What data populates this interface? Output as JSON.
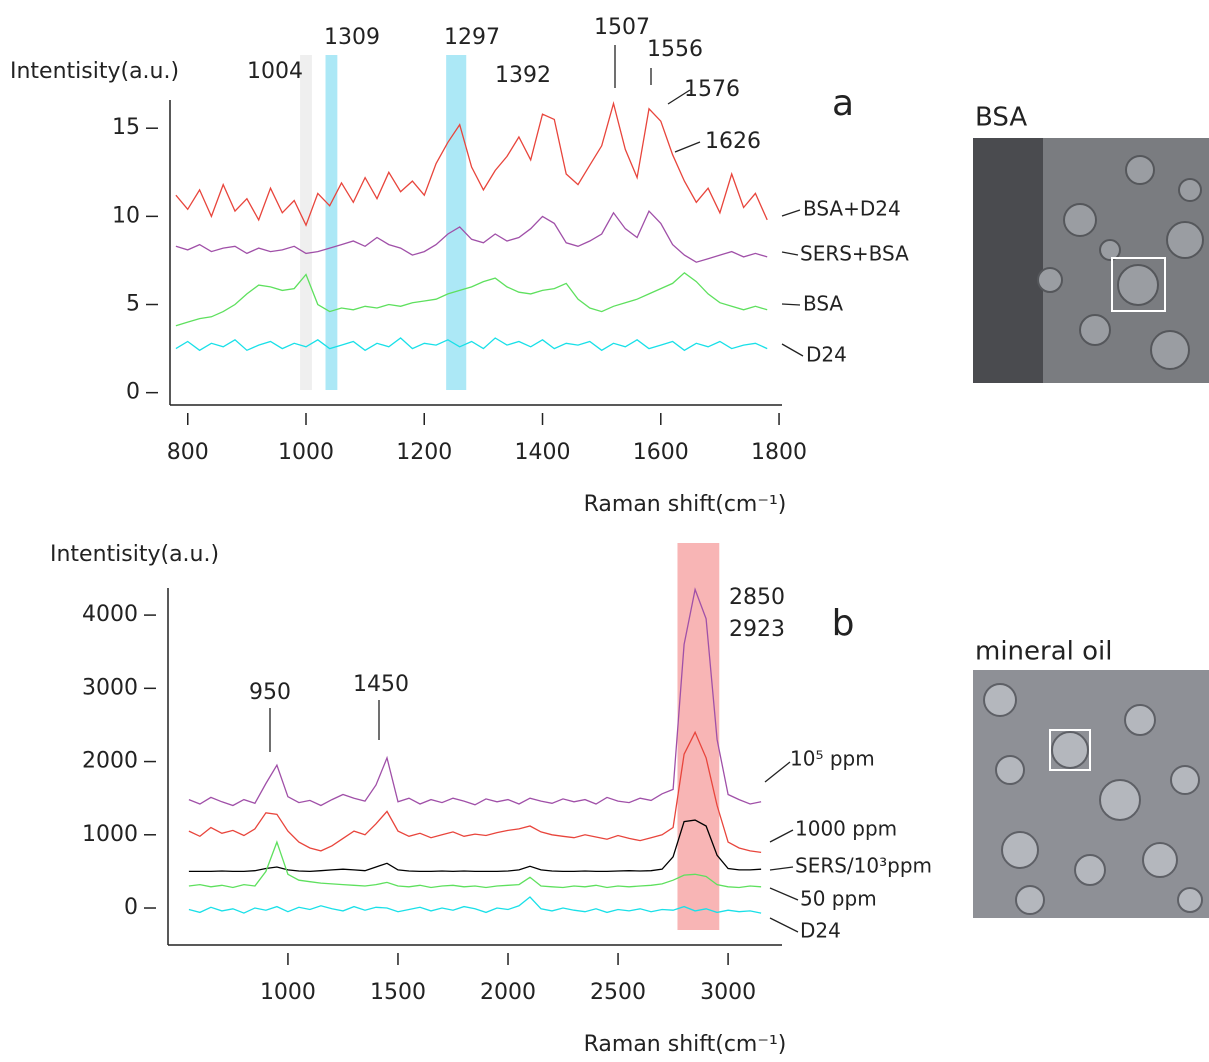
{
  "chart_data": [
    {
      "type": "line",
      "panel": "a",
      "ylabel": "Intentisity(a.u.)",
      "xlabel": "Raman shift(cm⁻¹)",
      "xlim": [
        770,
        1805
      ],
      "ylim": [
        -0.7,
        16.6
      ],
      "xticks": [
        800,
        1000,
        1200,
        1400,
        1600,
        1800
      ],
      "yticks": [
        0,
        5,
        10,
        15
      ],
      "bands": [
        {
          "range": [
            990,
            1010
          ],
          "color": "#ececec"
        },
        {
          "range": [
            1033,
            1053
          ],
          "color": "#9ee4f4"
        },
        {
          "range": [
            1237,
            1271
          ],
          "color": "#9ee4f4"
        }
      ],
      "annotations": [
        {
          "text": "1004"
        },
        {
          "text": "1309"
        },
        {
          "text": "1297"
        },
        {
          "text": "1392"
        },
        {
          "text": "1507"
        },
        {
          "text": "1556"
        },
        {
          "text": "1576"
        },
        {
          "text": "1626"
        }
      ],
      "x": [
        780,
        800,
        820,
        840,
        860,
        880,
        900,
        920,
        940,
        960,
        980,
        1000,
        1020,
        1040,
        1060,
        1080,
        1100,
        1120,
        1140,
        1160,
        1180,
        1200,
        1220,
        1240,
        1260,
        1280,
        1300,
        1320,
        1340,
        1360,
        1380,
        1400,
        1420,
        1440,
        1460,
        1480,
        1500,
        1520,
        1540,
        1560,
        1580,
        1600,
        1620,
        1640,
        1660,
        1680,
        1700,
        1720,
        1740,
        1760,
        1780
      ],
      "series": [
        {
          "name": "BSA+D24",
          "color": "#e8453c",
          "values": [
            11.2,
            10.4,
            11.5,
            10.0,
            11.8,
            10.3,
            11.0,
            9.8,
            11.6,
            10.2,
            10.9,
            9.5,
            11.3,
            10.6,
            11.9,
            10.8,
            12.2,
            11.0,
            12.5,
            11.4,
            12.0,
            11.2,
            13.0,
            14.2,
            15.2,
            12.8,
            11.5,
            12.6,
            13.4,
            14.5,
            13.2,
            15.8,
            15.5,
            12.4,
            11.8,
            12.9,
            14.0,
            16.4,
            13.8,
            12.2,
            16.1,
            15.4,
            13.5,
            12.0,
            10.8,
            11.6,
            10.2,
            12.4,
            10.5,
            11.3,
            9.8
          ]
        },
        {
          "name": "SERS+BSA",
          "color": "#a050a8",
          "values": [
            8.3,
            8.1,
            8.4,
            8.0,
            8.2,
            8.3,
            7.9,
            8.2,
            8.0,
            8.1,
            8.3,
            7.9,
            8.0,
            8.2,
            8.4,
            8.6,
            8.3,
            8.8,
            8.4,
            8.2,
            7.8,
            8.0,
            8.4,
            9.0,
            9.4,
            8.7,
            8.5,
            9.0,
            8.6,
            8.8,
            9.3,
            10.0,
            9.6,
            8.5,
            8.3,
            8.6,
            9.0,
            10.2,
            9.3,
            8.8,
            10.3,
            9.6,
            8.4,
            7.8,
            7.4,
            7.6,
            7.8,
            8.0,
            7.7,
            7.9,
            7.7
          ]
        },
        {
          "name": "BSA",
          "color": "#5ee05e",
          "values": [
            3.8,
            4.0,
            4.2,
            4.3,
            4.6,
            5.0,
            5.6,
            6.1,
            6.0,
            5.8,
            5.9,
            6.7,
            5.0,
            4.6,
            4.8,
            4.7,
            4.9,
            4.8,
            5.0,
            4.9,
            5.1,
            5.2,
            5.3,
            5.6,
            5.8,
            6.0,
            6.3,
            6.5,
            6.0,
            5.7,
            5.6,
            5.8,
            5.9,
            6.2,
            5.3,
            4.8,
            4.6,
            4.9,
            5.1,
            5.3,
            5.6,
            5.9,
            6.2,
            6.8,
            6.3,
            5.6,
            5.1,
            4.9,
            4.7,
            4.9,
            4.7
          ]
        },
        {
          "name": "D24",
          "color": "#19e0e8",
          "values": [
            2.5,
            2.9,
            2.4,
            2.8,
            2.6,
            3.0,
            2.4,
            2.7,
            2.9,
            2.5,
            2.8,
            2.6,
            3.0,
            2.5,
            2.7,
            2.9,
            2.4,
            2.8,
            2.6,
            3.1,
            2.5,
            2.8,
            2.7,
            3.0,
            2.6,
            2.9,
            2.5,
            3.1,
            2.7,
            2.9,
            2.6,
            3.0,
            2.5,
            2.8,
            2.7,
            2.9,
            2.4,
            2.8,
            2.6,
            3.0,
            2.5,
            2.7,
            2.9,
            2.4,
            2.8,
            2.6,
            2.9,
            2.5,
            2.7,
            2.8,
            2.5
          ]
        }
      ]
    },
    {
      "type": "line",
      "panel": "b",
      "ylabel": "Intentisity(a.u.)",
      "xlabel": "Raman shift(cm⁻¹)",
      "xlim": [
        455,
        3245
      ],
      "ylim": [
        -505,
        4370
      ],
      "xticks": [
        1000,
        1500,
        2000,
        2500,
        3000
      ],
      "yticks": [
        0,
        1000,
        2000,
        3000,
        4000
      ],
      "bands": [
        {
          "range": [
            2770,
            2960
          ],
          "color": "#f7a8a8"
        }
      ],
      "annotations": [
        {
          "text": "950"
        },
        {
          "text": "1450"
        },
        {
          "text": "2850"
        },
        {
          "text": "2923"
        }
      ],
      "x": [
        550,
        600,
        650,
        700,
        750,
        800,
        850,
        900,
        950,
        1000,
        1050,
        1100,
        1150,
        1200,
        1250,
        1300,
        1350,
        1400,
        1450,
        1500,
        1550,
        1600,
        1650,
        1700,
        1750,
        1800,
        1850,
        1900,
        1950,
        2000,
        2050,
        2100,
        2150,
        2200,
        2250,
        2300,
        2350,
        2400,
        2450,
        2500,
        2550,
        2600,
        2650,
        2700,
        2750,
        2800,
        2850,
        2900,
        2950,
        3000,
        3050,
        3100,
        3150
      ],
      "series": [
        {
          "name": "10⁵ ppm",
          "color": "#a050a8",
          "values": [
            1480,
            1420,
            1510,
            1450,
            1400,
            1480,
            1430,
            1700,
            1950,
            1520,
            1440,
            1470,
            1400,
            1480,
            1550,
            1500,
            1460,
            1680,
            2050,
            1450,
            1500,
            1420,
            1480,
            1440,
            1500,
            1460,
            1410,
            1490,
            1450,
            1480,
            1420,
            1500,
            1460,
            1430,
            1490,
            1450,
            1480,
            1420,
            1510,
            1460,
            1440,
            1500,
            1470,
            1560,
            1620,
            3600,
            4350,
            3950,
            2300,
            1550,
            1480,
            1420,
            1450
          ]
        },
        {
          "name": "1000 ppm",
          "color": "#e8453c",
          "values": [
            1050,
            980,
            1100,
            1020,
            1060,
            990,
            1080,
            1300,
            1280,
            1050,
            900,
            820,
            780,
            850,
            950,
            1050,
            1000,
            1150,
            1320,
            1050,
            980,
            1020,
            960,
            1000,
            1040,
            980,
            1010,
            990,
            1030,
            1060,
            1080,
            1120,
            1040,
            1000,
            980,
            960,
            1000,
            970,
            940,
            990,
            950,
            920,
            960,
            1000,
            1100,
            2100,
            2400,
            2050,
            1400,
            900,
            820,
            780,
            760
          ]
        },
        {
          "name": "SERS/10³ppm",
          "color": "#000000",
          "values": [
            500,
            500,
            500,
            505,
            500,
            500,
            510,
            540,
            560,
            520,
            505,
            500,
            510,
            520,
            530,
            520,
            510,
            560,
            610,
            520,
            505,
            500,
            500,
            505,
            500,
            505,
            500,
            500,
            500,
            505,
            520,
            570,
            520,
            505,
            500,
            500,
            505,
            500,
            500,
            505,
            510,
            505,
            510,
            530,
            700,
            1180,
            1200,
            1120,
            720,
            540,
            520,
            520,
            530
          ]
        },
        {
          "name": "50 ppm",
          "color": "#5ee05e",
          "values": [
            300,
            320,
            290,
            310,
            280,
            320,
            300,
            500,
            900,
            460,
            380,
            360,
            340,
            330,
            320,
            310,
            300,
            320,
            350,
            300,
            290,
            310,
            280,
            300,
            310,
            290,
            300,
            280,
            300,
            310,
            320,
            420,
            300,
            290,
            280,
            300,
            290,
            310,
            280,
            300,
            290,
            300,
            310,
            330,
            380,
            450,
            460,
            430,
            320,
            290,
            280,
            300,
            290
          ]
        },
        {
          "name": "D24",
          "color": "#19e0e8",
          "values": [
            -20,
            -60,
            10,
            -40,
            -10,
            -70,
            0,
            -30,
            20,
            -50,
            10,
            -20,
            30,
            -10,
            -40,
            20,
            -30,
            10,
            0,
            -50,
            -20,
            10,
            -40,
            0,
            -30,
            20,
            -10,
            -60,
            0,
            -20,
            30,
            150,
            -10,
            -40,
            0,
            -30,
            -50,
            -10,
            -60,
            -20,
            -40,
            -10,
            -50,
            -20,
            -30,
            20,
            -40,
            -10,
            -60,
            -30,
            -50,
            -40,
            -70
          ]
        }
      ]
    }
  ],
  "images": [
    {
      "label": "BSA"
    },
    {
      "label": "mineral oil"
    }
  ]
}
